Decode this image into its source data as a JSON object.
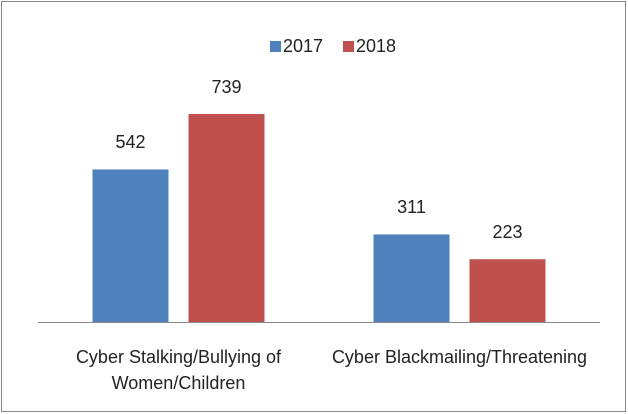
{
  "chart_data": {
    "type": "bar",
    "categories": [
      "Cyber Stalking/Bullying of Women/Children",
      "Cyber Blackmailing/Threatening"
    ],
    "series": [
      {
        "name": "2017",
        "color": "#4f81bd",
        "values": [
          542,
          311
        ]
      },
      {
        "name": "2018",
        "color": "#c0504d",
        "values": [
          739,
          223
        ]
      }
    ],
    "legend": "top"
  }
}
